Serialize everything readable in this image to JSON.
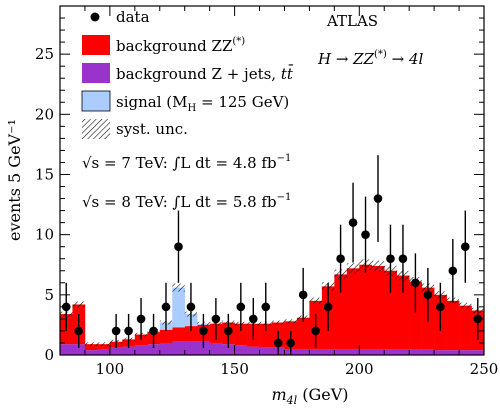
{
  "chart_data": {
    "type": "bar",
    "title": "",
    "xlabel": "m_4l (GeV)",
    "xlabel_parts": {
      "main": "m",
      "sub": "4l",
      "unit": " (GeV)"
    },
    "ylabel": "events 5 GeV⁻¹",
    "xlim": [
      80,
      250
    ],
    "ylim": [
      0,
      29
    ],
    "xticks": [
      100,
      150,
      200,
      250
    ],
    "yticks": [
      0,
      5,
      10,
      15,
      20,
      25
    ],
    "bin_width": 5,
    "bin_edges": [
      80,
      85,
      90,
      95,
      100,
      105,
      110,
      115,
      120,
      125,
      130,
      135,
      140,
      145,
      150,
      155,
      160,
      165,
      170,
      175,
      180,
      185,
      190,
      195,
      200,
      205,
      210,
      215,
      220,
      225,
      230,
      235,
      240,
      245,
      250
    ],
    "series": [
      {
        "name": "background Z+jets, tt̄",
        "color": "#9933cc",
        "values": [
          0.9,
          0.9,
          0.4,
          0.5,
          0.6,
          0.7,
          0.8,
          0.9,
          1.0,
          1.1,
          1.1,
          1.1,
          1.0,
          0.9,
          0.8,
          0.7,
          0.6,
          0.6,
          0.5,
          0.5,
          0.5,
          0.5,
          0.5,
          0.5,
          0.5,
          0.5,
          0.5,
          0.5,
          0.5,
          0.5,
          0.4,
          0.4,
          0.4,
          0.4
        ]
      },
      {
        "name": "background ZZ(*)",
        "color": "#ff0000",
        "values": [
          2.5,
          3.3,
          0.5,
          0.4,
          0.5,
          0.6,
          0.9,
          1.0,
          1.1,
          1.2,
          1.3,
          1.4,
          1.6,
          1.8,
          1.8,
          1.9,
          2.0,
          2.1,
          2.3,
          2.6,
          4.0,
          5.2,
          6.2,
          6.7,
          7.0,
          6.9,
          6.5,
          6.1,
          5.6,
          5.1,
          4.6,
          4.1,
          3.7,
          3.3
        ]
      },
      {
        "name": "signal (M_H = 125 GeV)",
        "color": "#aaccff",
        "values": [
          0,
          0,
          0,
          0,
          0,
          0,
          0,
          0.1,
          0.6,
          3.3,
          1.0,
          0.1,
          0,
          0,
          0,
          0,
          0,
          0,
          0,
          0,
          0,
          0,
          0,
          0,
          0,
          0,
          0,
          0,
          0,
          0,
          0,
          0,
          0,
          0
        ]
      }
    ],
    "data_points": {
      "name": "data",
      "x": [
        82.5,
        87.5,
        92.5,
        97.5,
        102.5,
        107.5,
        112.5,
        117.5,
        122.5,
        127.5,
        132.5,
        137.5,
        142.5,
        147.5,
        152.5,
        157.5,
        162.5,
        167.5,
        172.5,
        177.5,
        182.5,
        187.5,
        192.5,
        197.5,
        202.5,
        207.5,
        212.5,
        217.5,
        222.5,
        227.5,
        232.5,
        237.5,
        242.5,
        247.5
      ],
      "y": [
        4,
        2,
        0,
        0,
        2,
        2,
        3,
        2,
        4,
        9,
        4,
        2,
        3,
        2,
        4,
        3,
        4,
        1,
        1,
        5,
        2,
        4,
        8,
        11,
        10,
        13,
        8,
        8,
        6,
        5,
        4,
        7,
        9,
        3
      ]
    },
    "legend_position": "top-left",
    "syst_unc_label": "syst. unc.",
    "grid": false
  },
  "legend": {
    "data": "data",
    "zz_main": "background ZZ",
    "zz_sup": "(*)",
    "zjets_main": "background Z + jets, ",
    "zjets_tt": "tt̄",
    "signal_pre": "signal (M",
    "signal_sub": "H",
    "signal_post": " = 125 GeV)",
    "syst": "syst. unc."
  },
  "annotations": {
    "experiment": "ATLAS",
    "process_lhs": "H → ZZ",
    "process_sup": "(*)",
    "process_rhs": " → 4l",
    "lumi_7_pre": "√s = 7 TeV: ∫L dt = 4.8 fb",
    "lumi_7_sup": "−1",
    "lumi_8_pre": "√s = 8 TeV: ∫L dt = 5.8 fb",
    "lumi_8_sup": "−1"
  }
}
